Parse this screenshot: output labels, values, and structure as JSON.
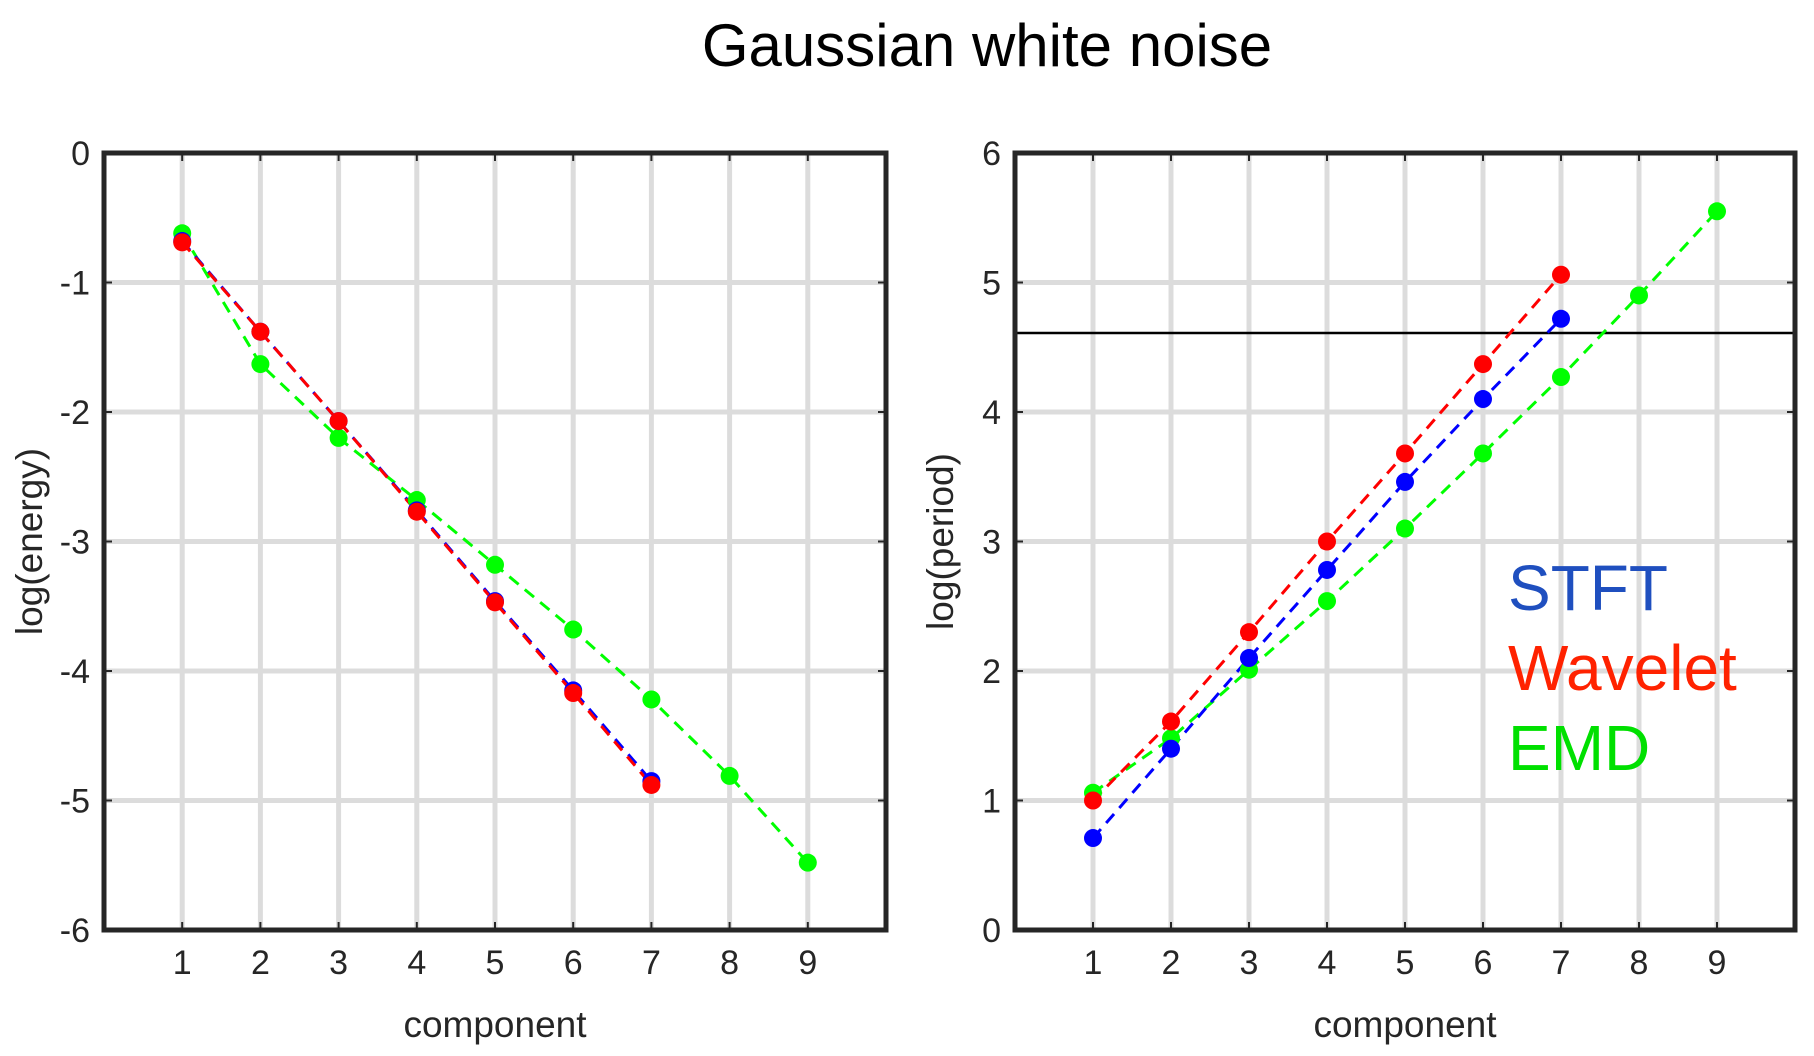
{
  "figure": {
    "title": "Gaussian white noise"
  },
  "colors": {
    "STFT": "#0000ff",
    "Wavelet": "#ff0000",
    "EMD": "#00ff00",
    "STFT_legend": "#1f4fbf",
    "Wavelet_legend": "#ff2200",
    "EMD_legend": "#00e000",
    "grid": "#dcdcdc",
    "axes": "#262626",
    "reference_line": "#000000"
  },
  "legend": {
    "entries": [
      {
        "key": "STFT",
        "label": "STFT"
      },
      {
        "key": "Wavelet",
        "label": "Wavelet"
      },
      {
        "key": "EMD",
        "label": "EMD"
      }
    ],
    "placement": "lower-right of right panel"
  },
  "chart_data": [
    {
      "type": "line",
      "title": "",
      "xlabel": "component",
      "ylabel": "log(energy)",
      "xlim": [
        0,
        10
      ],
      "ylim": [
        -6,
        0
      ],
      "xticks": [
        1,
        2,
        3,
        4,
        5,
        6,
        7,
        8,
        9
      ],
      "yticks": [
        -6,
        -5,
        -4,
        -3,
        -2,
        -1,
        0
      ],
      "grid": true,
      "line_style": "dashed with circle markers",
      "series": [
        {
          "name": "STFT",
          "x": [
            1,
            2,
            3,
            4,
            5,
            6,
            7
          ],
          "values": [
            -0.68,
            -1.38,
            -2.07,
            -2.76,
            -3.46,
            -4.15,
            -4.85
          ]
        },
        {
          "name": "EMD",
          "x": [
            1,
            2,
            3,
            4,
            5,
            6,
            7,
            8,
            9
          ],
          "values": [
            -0.62,
            -1.63,
            -2.2,
            -2.68,
            -3.18,
            -3.68,
            -4.22,
            -4.81,
            -5.48
          ]
        },
        {
          "name": "Wavelet",
          "x": [
            1,
            2,
            3,
            4,
            5,
            6,
            7
          ],
          "values": [
            -0.69,
            -1.38,
            -2.07,
            -2.77,
            -3.47,
            -4.17,
            -4.88
          ]
        }
      ]
    },
    {
      "type": "line",
      "title": "",
      "xlabel": "component",
      "ylabel": "log(period)",
      "xlim": [
        0,
        10
      ],
      "ylim": [
        0,
        6
      ],
      "xticks": [
        1,
        2,
        3,
        4,
        5,
        6,
        7,
        8,
        9
      ],
      "yticks": [
        0,
        1,
        2,
        3,
        4,
        5,
        6
      ],
      "grid": true,
      "line_style": "dashed with circle markers",
      "reference_line": {
        "orientation": "horizontal",
        "y": 4.61
      },
      "series": [
        {
          "name": "STFT",
          "x": [
            1,
            2,
            3,
            4,
            5,
            6,
            7
          ],
          "values": [
            0.71,
            1.4,
            2.1,
            2.78,
            3.46,
            4.1,
            4.72
          ]
        },
        {
          "name": "EMD",
          "x": [
            1,
            2,
            3,
            4,
            5,
            6,
            7,
            8,
            9
          ],
          "values": [
            1.06,
            1.48,
            2.01,
            2.54,
            3.1,
            3.68,
            4.27,
            4.9,
            5.55
          ]
        },
        {
          "name": "Wavelet",
          "x": [
            1,
            2,
            3,
            4,
            5,
            6,
            7
          ],
          "values": [
            1.0,
            1.61,
            2.3,
            3.0,
            3.68,
            4.37,
            5.06
          ]
        }
      ]
    }
  ]
}
